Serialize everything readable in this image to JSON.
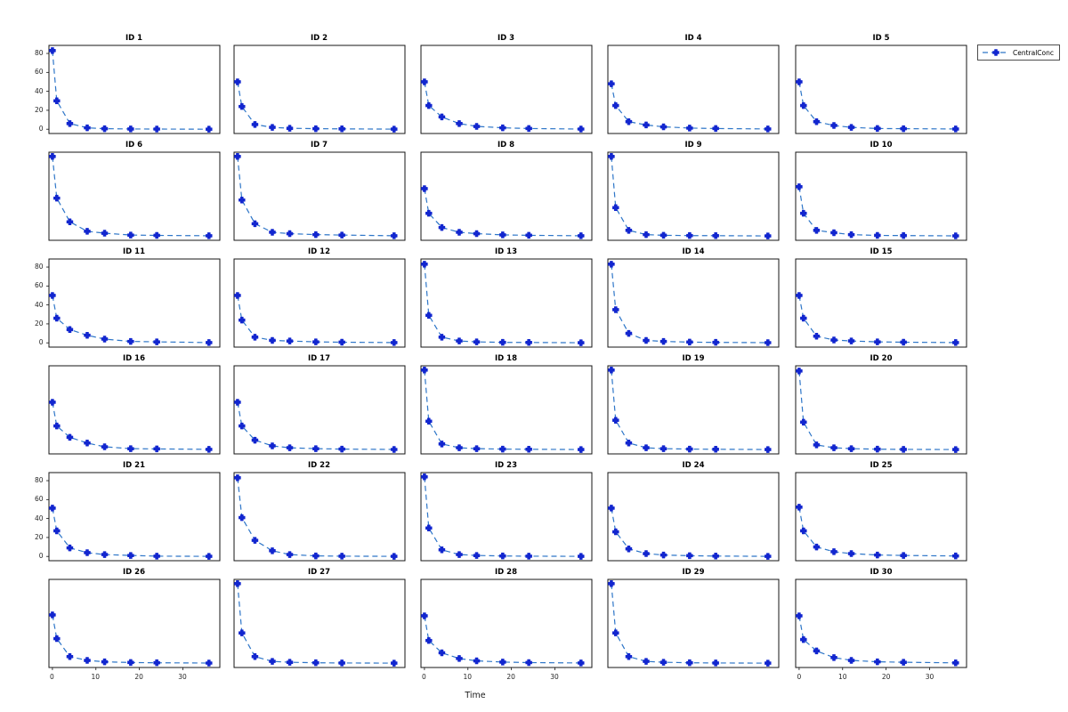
{
  "figure": {
    "background": "#ffffff"
  },
  "chart_data": {
    "type": "line",
    "layout": "small-multiples-grid-6-rows-x-5-cols",
    "xlabel": "Time",
    "legend": [
      "CentralConc"
    ],
    "legend_position": "top-right-outside",
    "x": [
      0,
      1,
      4,
      8,
      12,
      18,
      24,
      36
    ],
    "xticks": [
      0,
      10,
      20,
      30
    ],
    "yticks": [
      0,
      20,
      40,
      60,
      80
    ],
    "xlim": [
      -0.8,
      38.5
    ],
    "ylim": [
      -4.5,
      88.5
    ],
    "grid": false,
    "line_style": "dashed",
    "marker": "filled-plus",
    "colors": {
      "line": "#2e76c8",
      "marker": "#1226cf",
      "axis": "#141414",
      "title_text": "#000000",
      "tick_text": "#262626"
    },
    "series": [
      {
        "id": "ID 1",
        "values": [
          83,
          30,
          6,
          1.5,
          0.6,
          0.3,
          0.2,
          0.05
        ]
      },
      {
        "id": "ID 2",
        "values": [
          50,
          24,
          5,
          2,
          1,
          0.6,
          0.4,
          0.1
        ]
      },
      {
        "id": "ID 3",
        "values": [
          50,
          25,
          13,
          6,
          3,
          1.5,
          0.8,
          0.2
        ]
      },
      {
        "id": "ID 4",
        "values": [
          48,
          25,
          8,
          4.5,
          2.5,
          1.2,
          0.8,
          0.3
        ]
      },
      {
        "id": "ID 5",
        "values": [
          50,
          25,
          8,
          4,
          2,
          0.8,
          0.6,
          0.3
        ]
      },
      {
        "id": "ID 6",
        "values": [
          84,
          40,
          15,
          5,
          3,
          1,
          0.7,
          0.3
        ]
      },
      {
        "id": "ID 7",
        "values": [
          84,
          38,
          13,
          4,
          2.5,
          1.5,
          1,
          0.3
        ]
      },
      {
        "id": "ID 8",
        "values": [
          50,
          24,
          9,
          4,
          2.5,
          1.2,
          0.8,
          0.3
        ]
      },
      {
        "id": "ID 9",
        "values": [
          84,
          30,
          6,
          1.5,
          0.8,
          0.5,
          0.4,
          0.1
        ]
      },
      {
        "id": "ID 10",
        "values": [
          52,
          24,
          6,
          3.5,
          1.5,
          0.7,
          0.5,
          0.2
        ]
      },
      {
        "id": "ID 11",
        "values": [
          50,
          26,
          14,
          8,
          4,
          1.5,
          1,
          0.3
        ]
      },
      {
        "id": "ID 12",
        "values": [
          50,
          24,
          6,
          2.6,
          1.9,
          1,
          0.7,
          0.3
        ]
      },
      {
        "id": "ID 13",
        "values": [
          83,
          29,
          6,
          2,
          1,
          0.5,
          0.4,
          0.1
        ]
      },
      {
        "id": "ID 14",
        "values": [
          83,
          35,
          10,
          2.5,
          1.5,
          0.8,
          0.5,
          0.2
        ]
      },
      {
        "id": "ID 15",
        "values": [
          50,
          26,
          7,
          3,
          2,
          1,
          0.7,
          0.3
        ]
      },
      {
        "id": "ID 16",
        "values": [
          50,
          25,
          13,
          7,
          3,
          1,
          0.8,
          0.3
        ]
      },
      {
        "id": "ID 17",
        "values": [
          50,
          25,
          10,
          4,
          2,
          1,
          0.6,
          0.2
        ]
      },
      {
        "id": "ID 18",
        "values": [
          84,
          30,
          6,
          2,
          1,
          0.6,
          0.4,
          0.1
        ]
      },
      {
        "id": "ID 19",
        "values": [
          84,
          31,
          7,
          2,
          1,
          0.6,
          0.4,
          0.1
        ]
      },
      {
        "id": "ID 20",
        "values": [
          83,
          29,
          5,
          2,
          1,
          0.5,
          0.3,
          0.1
        ]
      },
      {
        "id": "ID 21",
        "values": [
          51,
          27,
          9,
          4,
          2,
          1,
          0.3,
          0.1
        ]
      },
      {
        "id": "ID 22",
        "values": [
          83,
          41,
          17,
          6,
          2,
          0.6,
          0.3,
          0.1
        ]
      },
      {
        "id": "ID 23",
        "values": [
          84,
          30,
          7,
          2,
          1,
          0.5,
          0.3,
          0.1
        ]
      },
      {
        "id": "ID 24",
        "values": [
          51,
          26,
          8,
          3,
          1.5,
          0.8,
          0.4,
          0.1
        ]
      },
      {
        "id": "ID 25",
        "values": [
          52,
          27,
          10,
          5,
          3,
          1.5,
          1,
          0.5
        ]
      },
      {
        "id": "ID 26",
        "values": [
          51,
          26,
          7,
          3,
          1.5,
          0.8,
          0.5,
          0.2
        ]
      },
      {
        "id": "ID 27",
        "values": [
          84,
          32,
          7,
          2,
          1,
          0.5,
          0.3,
          0.1
        ]
      },
      {
        "id": "ID 28",
        "values": [
          50,
          24,
          11,
          5,
          2.5,
          1.2,
          0.7,
          0.3
        ]
      },
      {
        "id": "ID 29",
        "values": [
          84,
          32,
          7,
          2,
          1,
          0.5,
          0.3,
          0.1
        ]
      },
      {
        "id": "ID 30",
        "values": [
          50,
          25,
          13,
          6,
          3,
          1.5,
          1,
          0.4
        ]
      }
    ]
  }
}
